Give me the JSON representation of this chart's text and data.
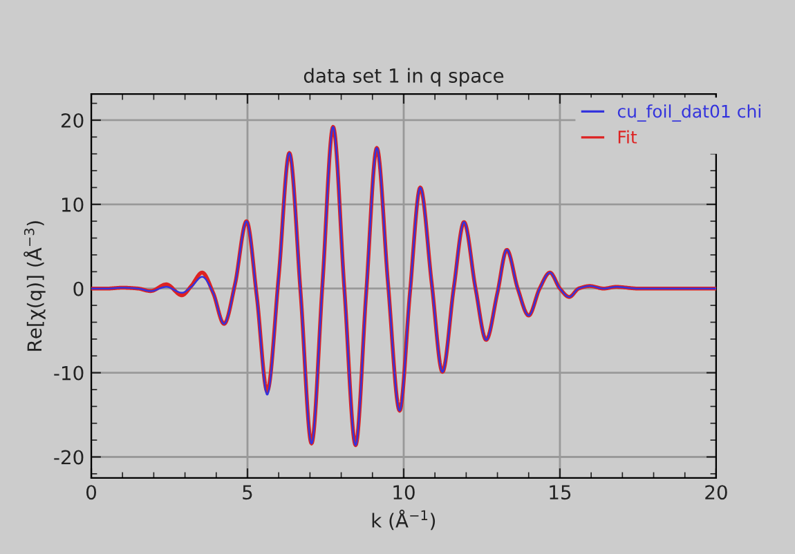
{
  "chart_data": {
    "type": "line",
    "title": "data set 1 in q space",
    "xlabel": "k (Å$^{−1}$)",
    "ylabel": "Re[χ(q)] (Å$^{−3}$)",
    "xlim": [
      0,
      20
    ],
    "xticks": [
      0,
      5,
      10,
      15,
      20
    ],
    "ylim": [
      -22.5,
      23.1
    ],
    "yticks": [
      -20,
      -10,
      0,
      10,
      20
    ],
    "grid": true,
    "legend": "top right",
    "marker": "none",
    "line_style": "solid",
    "series": [
      {
        "name": "cu_foil_dat01 chi",
        "color": "#3333dd",
        "x": [
          0,
          0.5,
          1.0,
          1.5,
          1.9,
          2.4,
          2.9,
          3.2,
          3.55,
          3.9,
          4.25,
          4.6,
          4.97,
          5.3,
          5.63,
          6.0,
          6.34,
          6.7,
          7.05,
          7.4,
          7.74,
          8.1,
          8.46,
          8.8,
          9.14,
          9.5,
          9.87,
          10.2,
          10.53,
          10.9,
          11.24,
          11.6,
          11.93,
          12.3,
          12.64,
          13.0,
          13.3,
          13.65,
          14.0,
          14.35,
          14.68,
          15.0,
          15.3,
          15.6,
          15.96,
          16.4,
          16.8,
          17.5,
          18,
          19,
          20
        ],
        "values": [
          0,
          0.0,
          0.1,
          0.0,
          -0.3,
          0.2,
          -0.5,
          0.2,
          1.4,
          -0.5,
          -4.2,
          0.5,
          8.0,
          -1,
          -12.6,
          1.5,
          16.1,
          -0.5,
          -18.4,
          0.5,
          19.2,
          0,
          -18.6,
          -0.5,
          16.7,
          0.5,
          -14.5,
          -0.5,
          12.0,
          0.5,
          -9.9,
          0,
          7.9,
          0,
          -6.1,
          -0.5,
          4.6,
          0,
          -3.2,
          0,
          1.9,
          0,
          -1.0,
          0,
          0.3,
          0,
          0.2,
          0,
          0,
          0,
          0
        ]
      },
      {
        "name": "Fit",
        "color": "#dd2222",
        "x": [
          0,
          0.5,
          1.0,
          1.5,
          1.9,
          2.4,
          2.9,
          3.2,
          3.55,
          3.9,
          4.25,
          4.6,
          4.97,
          5.3,
          5.63,
          6.0,
          6.34,
          6.7,
          7.05,
          7.4,
          7.74,
          8.1,
          8.46,
          8.8,
          9.14,
          9.5,
          9.87,
          10.2,
          10.53,
          10.9,
          11.24,
          11.6,
          11.93,
          12.3,
          12.64,
          13.0,
          13.3,
          13.65,
          14.0,
          14.35,
          14.68,
          15.0,
          15.3,
          15.6,
          15.96,
          16.4,
          16.8,
          17.5,
          18,
          19,
          20
        ],
        "values": [
          0,
          0.0,
          0.1,
          0.0,
          -0.3,
          0.5,
          -0.8,
          0.3,
          1.9,
          -0.5,
          -4.2,
          0.5,
          8.0,
          -1,
          -12.2,
          1.5,
          16.1,
          -0.5,
          -18.4,
          0.5,
          19.2,
          0,
          -18.6,
          -0.5,
          16.7,
          0.5,
          -14.5,
          -0.5,
          12.0,
          0.5,
          -9.9,
          0,
          7.9,
          0,
          -6.1,
          -0.5,
          4.6,
          0,
          -3.2,
          0,
          1.9,
          0,
          -1.0,
          0,
          0.3,
          0,
          0.2,
          0,
          0,
          0,
          0
        ]
      }
    ]
  }
}
